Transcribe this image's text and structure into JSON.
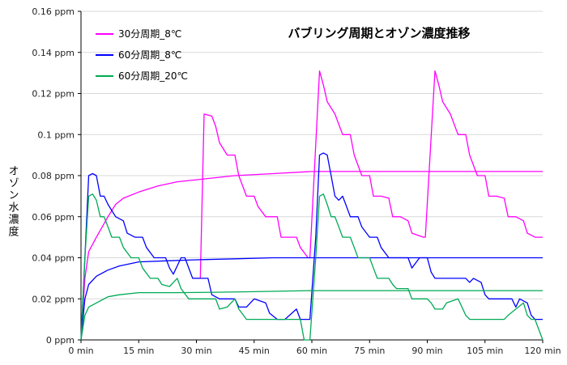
{
  "chart_data": {
    "type": "line",
    "title": "バブリング周期とオゾン濃度推移",
    "xlabel": "",
    "ylabel": "オゾン水濃度",
    "x_ticks": [
      "0 min",
      "15 min",
      "30 min",
      "45 min",
      "60 min",
      "75 min",
      "90 min",
      "105 min",
      "120 min"
    ],
    "y_ticks": [
      "0 ppm",
      "0.02 ppm",
      "0.04 ppm",
      "0.06 ppm",
      "0.08 ppm",
      "0.1 ppm",
      "0.12 ppm",
      "0.14 ppm",
      "0.16 ppm"
    ],
    "xlim": [
      0,
      120
    ],
    "ylim": [
      0,
      0.16
    ],
    "grid": {
      "horizontal": true,
      "vertical": false
    },
    "legend_position": "top-left",
    "series": [
      {
        "name": "30分周期_8℃",
        "color": "#ff00ff",
        "pulse": [
          [
            0,
            0.0
          ],
          [
            1,
            0.03
          ],
          [
            2,
            0.043
          ],
          [
            4,
            0.05
          ],
          [
            7,
            0.06
          ],
          [
            9,
            0.066
          ],
          [
            11,
            0.069
          ],
          [
            15,
            0.072
          ],
          [
            20,
            0.075
          ],
          [
            25,
            0.077
          ],
          [
            30,
            0.078
          ],
          [
            40,
            0.08
          ],
          [
            50,
            0.081
          ],
          [
            60,
            0.082
          ],
          [
            75,
            0.082
          ],
          [
            90,
            0.082
          ],
          [
            105,
            0.082
          ],
          [
            120,
            0.082
          ]
        ],
        "sawtooth": [
          [
            29,
            0.03
          ],
          [
            31,
            0.03
          ],
          [
            32,
            0.11
          ],
          [
            34,
            0.109
          ],
          [
            35,
            0.104
          ],
          [
            36,
            0.096
          ],
          [
            38,
            0.09
          ],
          [
            40,
            0.09
          ],
          [
            41,
            0.08
          ],
          [
            43,
            0.07
          ],
          [
            45,
            0.07
          ],
          [
            46,
            0.065
          ],
          [
            48,
            0.06
          ],
          [
            51,
            0.06
          ],
          [
            52,
            0.05
          ],
          [
            54,
            0.05
          ],
          [
            56,
            0.05
          ],
          [
            57,
            0.045
          ],
          [
            59,
            0.04
          ],
          [
            59.5,
            0.04
          ],
          [
            62,
            0.131
          ],
          [
            63,
            0.124
          ],
          [
            64,
            0.116
          ],
          [
            66,
            0.11
          ],
          [
            68,
            0.1
          ],
          [
            70,
            0.1
          ],
          [
            71,
            0.09
          ],
          [
            73,
            0.08
          ],
          [
            75,
            0.08
          ],
          [
            76,
            0.07
          ],
          [
            78,
            0.07
          ],
          [
            80,
            0.069
          ],
          [
            81,
            0.06
          ],
          [
            83,
            0.06
          ],
          [
            85,
            0.058
          ],
          [
            86,
            0.052
          ],
          [
            89,
            0.05
          ],
          [
            89.5,
            0.05
          ],
          [
            92,
            0.131
          ],
          [
            93,
            0.124
          ],
          [
            94,
            0.116
          ],
          [
            96,
            0.11
          ],
          [
            98,
            0.1
          ],
          [
            100,
            0.1
          ],
          [
            101,
            0.09
          ],
          [
            103,
            0.08
          ],
          [
            105,
            0.08
          ],
          [
            106,
            0.07
          ],
          [
            108,
            0.07
          ],
          [
            110,
            0.069
          ],
          [
            111,
            0.06
          ],
          [
            113,
            0.06
          ],
          [
            115,
            0.058
          ],
          [
            116,
            0.052
          ],
          [
            118,
            0.05
          ],
          [
            120,
            0.05
          ]
        ]
      },
      {
        "name": "60分周期_8℃",
        "color": "#0000ff",
        "pulse": [
          [
            0,
            0.0
          ],
          [
            1,
            0.02
          ],
          [
            2,
            0.027
          ],
          [
            4,
            0.031
          ],
          [
            7,
            0.034
          ],
          [
            10,
            0.036
          ],
          [
            15,
            0.038
          ],
          [
            22,
            0.0385
          ],
          [
            30,
            0.039
          ],
          [
            40,
            0.0395
          ],
          [
            50,
            0.04
          ],
          [
            60,
            0.04
          ],
          [
            90,
            0.04
          ],
          [
            120,
            0.04
          ]
        ],
        "sawtooth": [
          [
            0,
            0.0
          ],
          [
            1,
            0.04
          ],
          [
            2,
            0.08
          ],
          [
            3,
            0.081
          ],
          [
            4,
            0.08
          ],
          [
            5,
            0.07
          ],
          [
            6,
            0.07
          ],
          [
            7,
            0.066
          ],
          [
            8,
            0.063
          ],
          [
            9,
            0.06
          ],
          [
            11,
            0.058
          ],
          [
            12,
            0.052
          ],
          [
            14,
            0.05
          ],
          [
            16,
            0.05
          ],
          [
            17,
            0.045
          ],
          [
            19,
            0.04
          ],
          [
            22,
            0.04
          ],
          [
            23,
            0.035
          ],
          [
            24,
            0.032
          ],
          [
            26,
            0.04
          ],
          [
            27,
            0.04
          ],
          [
            29,
            0.03
          ],
          [
            33,
            0.03
          ],
          [
            34,
            0.022
          ],
          [
            36,
            0.02
          ],
          [
            40,
            0.02
          ],
          [
            41,
            0.016
          ],
          [
            43,
            0.016
          ],
          [
            45,
            0.02
          ],
          [
            48,
            0.018
          ],
          [
            49,
            0.013
          ],
          [
            51,
            0.01
          ],
          [
            53,
            0.01
          ],
          [
            56,
            0.015
          ],
          [
            57,
            0.01
          ],
          [
            59,
            0.01
          ],
          [
            59.5,
            0.01
          ],
          [
            61,
            0.05
          ],
          [
            62,
            0.09
          ],
          [
            63,
            0.091
          ],
          [
            64,
            0.09
          ],
          [
            65,
            0.08
          ],
          [
            66,
            0.07
          ],
          [
            67,
            0.068
          ],
          [
            68,
            0.07
          ],
          [
            69,
            0.065
          ],
          [
            70,
            0.06
          ],
          [
            72,
            0.06
          ],
          [
            73,
            0.055
          ],
          [
            75,
            0.05
          ],
          [
            77,
            0.05
          ],
          [
            78,
            0.045
          ],
          [
            80,
            0.04
          ],
          [
            85,
            0.04
          ],
          [
            86,
            0.035
          ],
          [
            88,
            0.04
          ],
          [
            90,
            0.04
          ],
          [
            91,
            0.033
          ],
          [
            92,
            0.03
          ],
          [
            100,
            0.03
          ],
          [
            101,
            0.028
          ],
          [
            102,
            0.03
          ],
          [
            104,
            0.028
          ],
          [
            105,
            0.022
          ],
          [
            106,
            0.02
          ],
          [
            112,
            0.02
          ],
          [
            113,
            0.016
          ],
          [
            114,
            0.02
          ],
          [
            116,
            0.018
          ],
          [
            117,
            0.012
          ],
          [
            118,
            0.01
          ],
          [
            120,
            0.01
          ]
        ]
      },
      {
        "name": "60分周期_20℃",
        "color": "#00aa55",
        "pulse": [
          [
            0,
            0.0
          ],
          [
            1,
            0.012
          ],
          [
            2,
            0.016
          ],
          [
            4,
            0.018
          ],
          [
            7,
            0.021
          ],
          [
            10,
            0.022
          ],
          [
            15,
            0.023
          ],
          [
            25,
            0.023
          ],
          [
            35,
            0.0232
          ],
          [
            45,
            0.0235
          ],
          [
            60,
            0.024
          ],
          [
            75,
            0.024
          ],
          [
            90,
            0.024
          ],
          [
            120,
            0.024
          ]
        ],
        "sawtooth": [
          [
            0,
            0.0
          ],
          [
            1,
            0.04
          ],
          [
            2,
            0.07
          ],
          [
            3,
            0.071
          ],
          [
            4,
            0.068
          ],
          [
            5,
            0.06
          ],
          [
            6,
            0.06
          ],
          [
            7,
            0.055
          ],
          [
            8,
            0.05
          ],
          [
            9,
            0.05
          ],
          [
            10,
            0.05
          ],
          [
            11,
            0.045
          ],
          [
            13,
            0.04
          ],
          [
            15,
            0.04
          ],
          [
            16,
            0.035
          ],
          [
            18,
            0.03
          ],
          [
            20,
            0.03
          ],
          [
            21,
            0.027
          ],
          [
            23,
            0.026
          ],
          [
            25,
            0.03
          ],
          [
            26,
            0.025
          ],
          [
            28,
            0.02
          ],
          [
            35,
            0.02
          ],
          [
            36,
            0.015
          ],
          [
            38,
            0.016
          ],
          [
            40,
            0.02
          ],
          [
            41,
            0.015
          ],
          [
            43,
            0.01
          ],
          [
            50,
            0.01
          ],
          [
            52,
            0.01
          ],
          [
            55,
            0.01
          ],
          [
            57,
            0.01
          ],
          [
            58,
            0.0
          ],
          [
            59.5,
            0.0
          ],
          [
            61,
            0.04
          ],
          [
            62,
            0.07
          ],
          [
            63,
            0.071
          ],
          [
            64,
            0.066
          ],
          [
            65,
            0.06
          ],
          [
            66,
            0.06
          ],
          [
            67,
            0.055
          ],
          [
            68,
            0.05
          ],
          [
            70,
            0.05
          ],
          [
            71,
            0.045
          ],
          [
            72,
            0.04
          ],
          [
            75,
            0.04
          ],
          [
            76,
            0.035
          ],
          [
            77,
            0.03
          ],
          [
            80,
            0.03
          ],
          [
            81,
            0.027
          ],
          [
            82,
            0.025
          ],
          [
            85,
            0.025
          ],
          [
            86,
            0.02
          ],
          [
            88,
            0.02
          ],
          [
            90,
            0.02
          ],
          [
            91,
            0.018
          ],
          [
            92,
            0.015
          ],
          [
            94,
            0.015
          ],
          [
            95,
            0.018
          ],
          [
            98,
            0.02
          ],
          [
            99,
            0.016
          ],
          [
            100,
            0.012
          ],
          [
            101,
            0.01
          ],
          [
            110,
            0.01
          ],
          [
            111,
            0.012
          ],
          [
            113,
            0.015
          ],
          [
            115,
            0.018
          ],
          [
            116,
            0.012
          ],
          [
            117,
            0.01
          ],
          [
            118,
            0.01
          ],
          [
            120,
            0.0
          ]
        ]
      }
    ]
  }
}
